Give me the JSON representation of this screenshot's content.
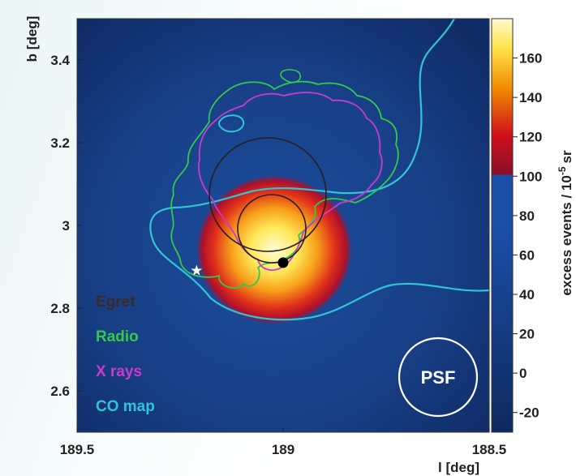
{
  "chart_data": {
    "type": "heatmap",
    "xlabel": "l [deg]",
    "ylabel": "b [deg]",
    "colorbar_label": "excess events / 10",
    "colorbar_unit_exp": "-5",
    "colorbar_unit_tail": "sr",
    "xlim": [
      189.5,
      188.5
    ],
    "ylim": [
      2.5,
      3.5
    ],
    "x_ticks": [
      189.5,
      189,
      188.5
    ],
    "x_tick_labels": [
      "189.5",
      "189",
      "188.5"
    ],
    "y_ticks": [
      2.6,
      2.8,
      3,
      3.2,
      3.4
    ],
    "y_tick_labels": [
      "2.6",
      "2.8",
      "3",
      "3.2",
      "3.4"
    ],
    "colorbar_ticks": [
      -20,
      0,
      20,
      40,
      60,
      80,
      100,
      120,
      140,
      160
    ],
    "colorbar_tick_labels": [
      "-20",
      "0",
      "20",
      "40",
      "60",
      "80",
      "100",
      "120",
      "140",
      "160"
    ],
    "colorbar_range": [
      -30,
      180
    ],
    "colorscale": [
      "#0d2a5e",
      "#1a4fa8",
      "#8b0f2a",
      "#d0101a",
      "#f08a00",
      "#ffe44a",
      "#fffbd0"
    ],
    "source_peak": {
      "l": 189.02,
      "b": 2.92,
      "peak_value": 170
    },
    "egret_source": {
      "l": 189.0,
      "b": 2.91
    },
    "star_marker": {
      "l": 189.21,
      "b": 2.89
    },
    "legend": [
      {
        "label": "Egret",
        "color": "#3a2a2a"
      },
      {
        "label": "Radio",
        "color": "#33c94a"
      },
      {
        "label": "X rays",
        "color": "#c93bd0"
      },
      {
        "label": "CO map",
        "color": "#2fc4d6"
      }
    ],
    "psf_label": "PSF",
    "grid": false
  }
}
